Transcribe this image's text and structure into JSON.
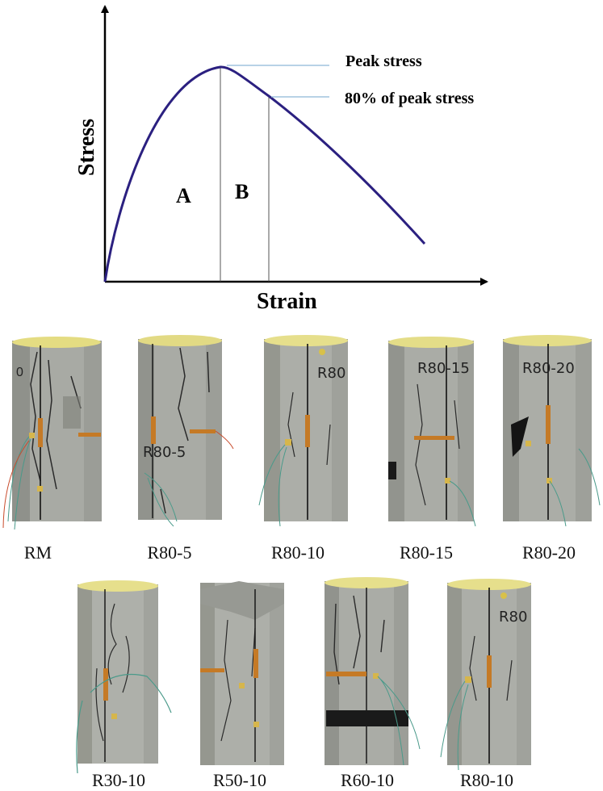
{
  "diagram": {
    "y_axis_label": "Stress",
    "x_axis_label": "Strain",
    "annotations": {
      "peak": "Peak stress",
      "eighty": "80% of peak stress"
    },
    "regions": [
      "A",
      "B"
    ],
    "curve_color": "#2b2080"
  },
  "specimens_row1": [
    {
      "label": "RM"
    },
    {
      "label": "R80-5",
      "marking": "R80-5"
    },
    {
      "label": "R80-10",
      "marking": "R80"
    },
    {
      "label": "R80-15",
      "marking": "R80-15"
    },
    {
      "label": "R80-20",
      "marking": "R80-20"
    }
  ],
  "specimens_row2": [
    {
      "label": "R30-10"
    },
    {
      "label": "R50-10"
    },
    {
      "label": "R60-10"
    },
    {
      "label": "R80-10",
      "marking": "R80"
    }
  ]
}
